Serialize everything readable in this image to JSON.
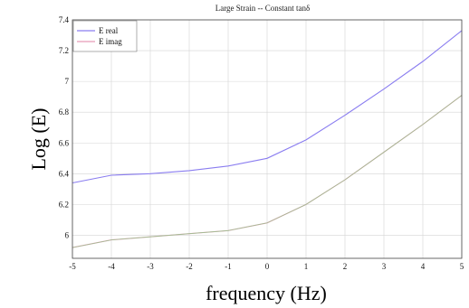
{
  "chart_data": {
    "type": "line",
    "title": "Large Strain -- Constant tanδ",
    "xlabel": "frequency (Hz)",
    "ylabel": "Log (E)",
    "xlim": [
      -5,
      5
    ],
    "ylim": [
      5.85,
      7.4
    ],
    "x_ticks": [
      "-5",
      "-4",
      "-3",
      "-2",
      "-1",
      "0",
      "1",
      "2",
      "3",
      "4",
      "5"
    ],
    "y_ticks": [
      "6",
      "6.2",
      "6.4",
      "6.6",
      "6.8",
      "7",
      "7.2",
      "7.4"
    ],
    "grid": true,
    "legend": "top-left",
    "series": [
      {
        "name": "E real",
        "color": "#8a7df0",
        "x": [
          -5,
          -4,
          -3,
          -2,
          -1,
          0,
          1,
          2,
          3,
          4,
          5
        ],
        "y": [
          6.34,
          6.39,
          6.4,
          6.42,
          6.45,
          6.5,
          6.62,
          6.78,
          6.95,
          7.13,
          7.33
        ]
      },
      {
        "name": "E imag",
        "color": "#e89ab8",
        "x": [
          -5,
          -4,
          -3,
          -2,
          -1,
          0,
          1,
          2,
          3,
          4,
          5
        ],
        "y": [
          5.92,
          5.97,
          5.99,
          6.01,
          6.03,
          6.08,
          6.2,
          6.36,
          6.54,
          6.72,
          6.91
        ]
      }
    ],
    "overlay_color": "#7fcf7f"
  }
}
